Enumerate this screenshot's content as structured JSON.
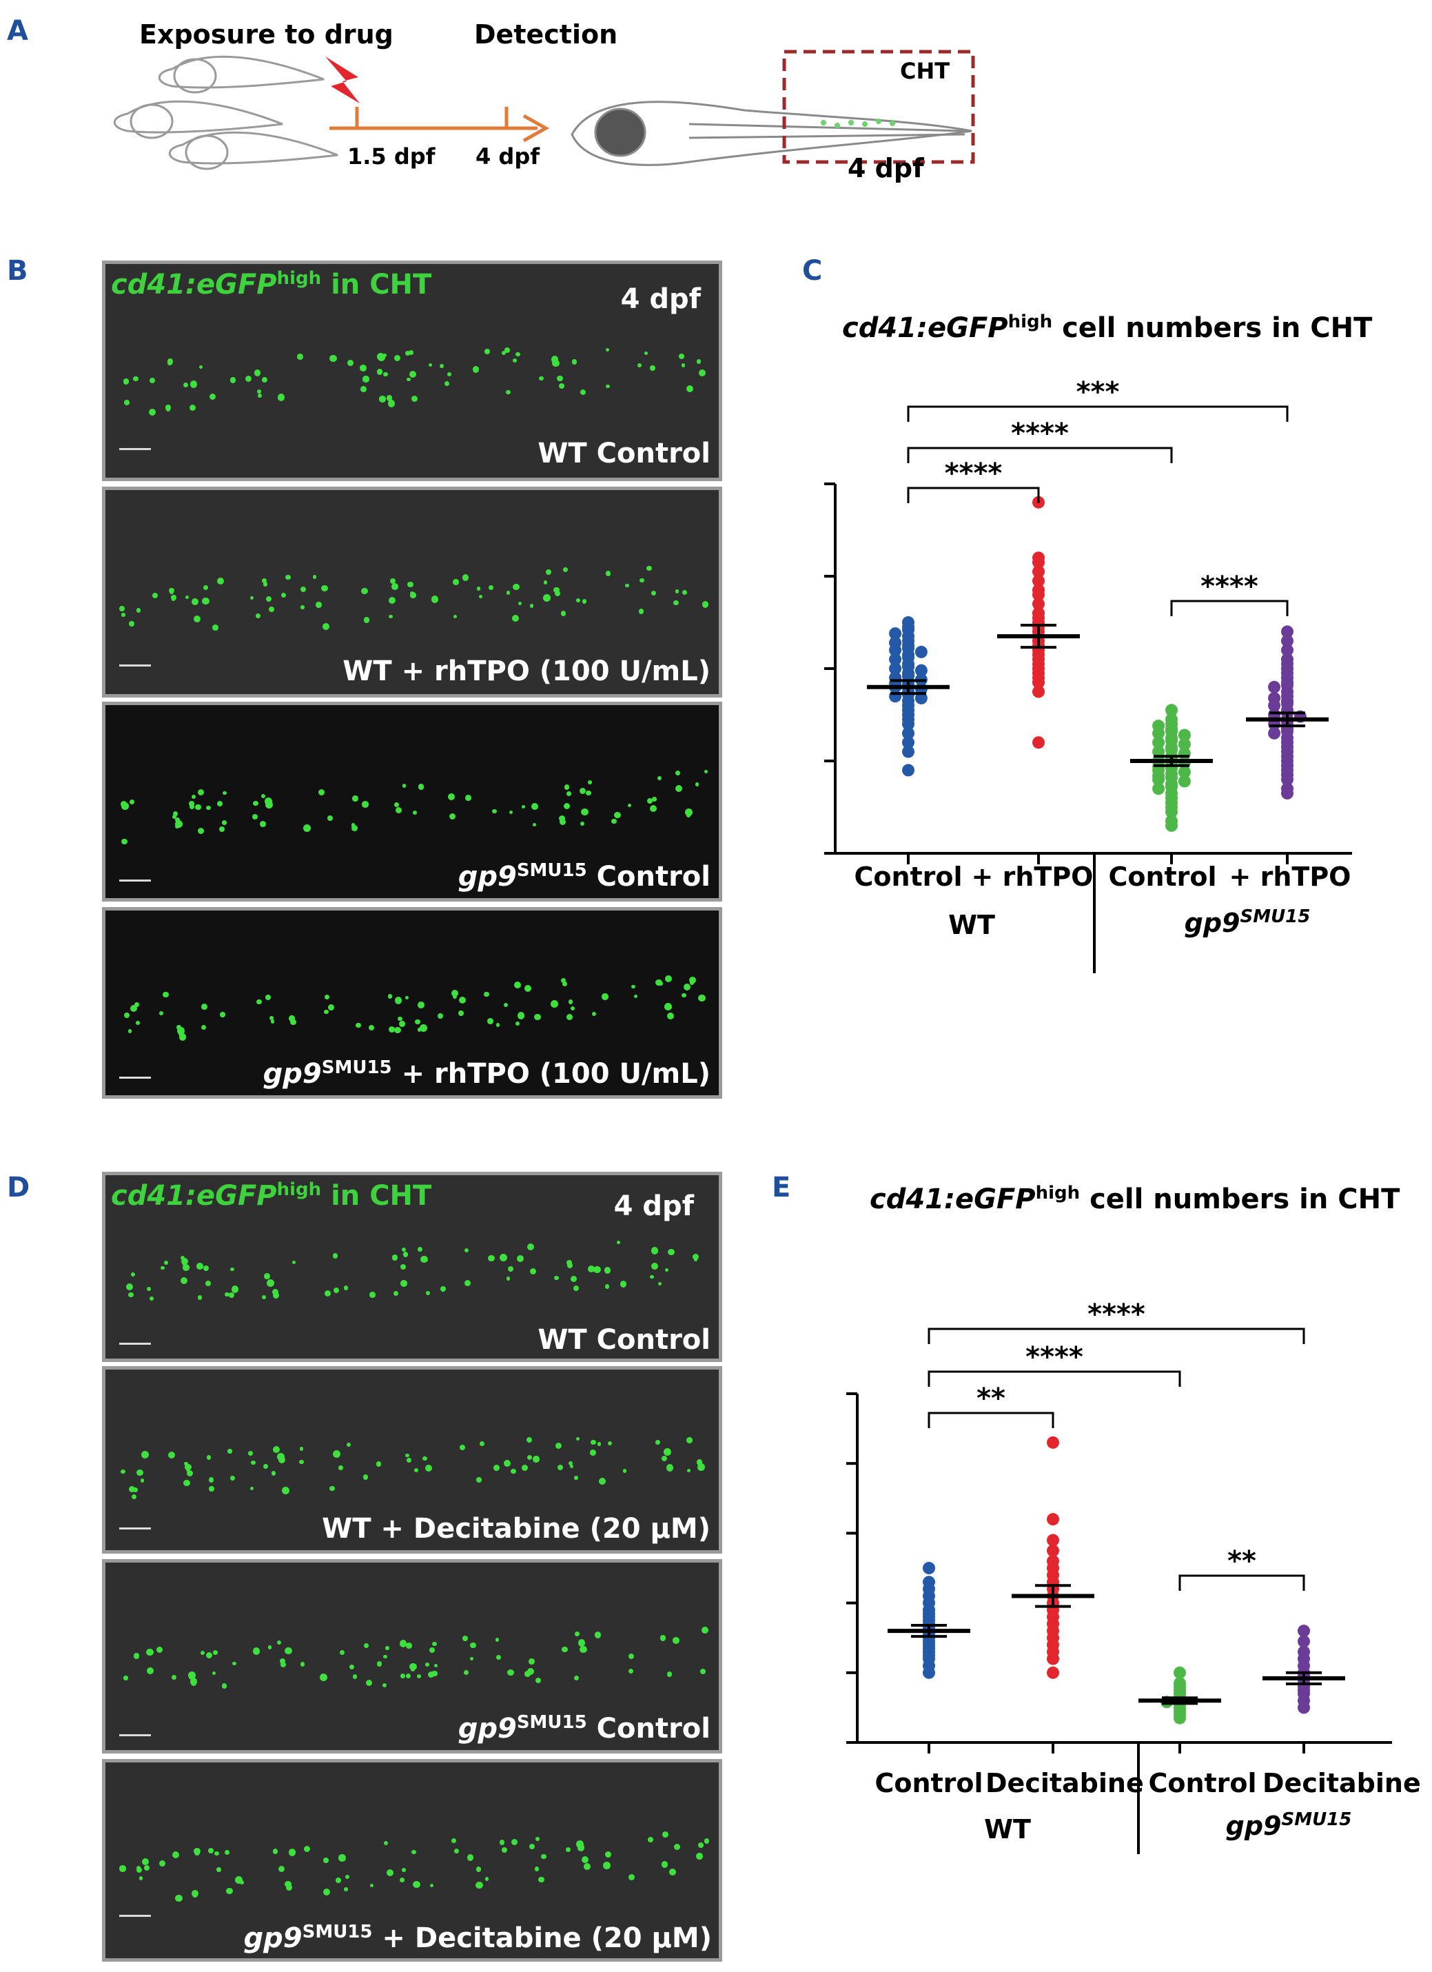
{
  "panel_a": {
    "letter": "A",
    "exposure_label": "Exposure to drug",
    "detection_label": "Detection",
    "tick1_label": "1.5 dpf",
    "tick2_label": "4 dpf",
    "cht_label": "CHT",
    "final_label": "4 dpf"
  },
  "panel_b": {
    "letter": "B",
    "title_gene": "cd41:eGFP",
    "title_sup": "high",
    "title_rest": " in CHT",
    "stage": "4 dpf",
    "images": [
      {
        "label_pre": "",
        "label_sup": "",
        "label_main": "WT Control"
      },
      {
        "label_pre": "",
        "label_sup": "",
        "label_main": "WT + rhTPO (100 U/mL)"
      },
      {
        "label_pre": "gp9",
        "label_sup": "SMU15",
        "label_main": " Control"
      },
      {
        "label_pre": "gp9",
        "label_sup": "SMU15",
        "label_main": " + rhTPO (100 U/mL)"
      }
    ]
  },
  "panel_c": {
    "letter": "C",
    "title_gene": "cd41:eGFP",
    "title_sup": "high",
    "title_rest": " cell numbers in CHT",
    "group_wt": "WT",
    "group_mut_pre": "gp9",
    "group_mut_sup": "SMU15",
    "categories": [
      "Control",
      "+ rhTPO",
      "Control",
      "+ rhTPO"
    ],
    "sig_labels": [
      "****",
      "****",
      "***",
      "****"
    ]
  },
  "panel_d": {
    "letter": "D",
    "title_gene": "cd41:eGFP",
    "title_sup": "high",
    "title_rest": " in CHT",
    "stage": "4 dpf",
    "images": [
      {
        "label_pre": "",
        "label_sup": "",
        "label_main": "WT Control"
      },
      {
        "label_pre": "",
        "label_sup": "",
        "label_main": "WT + Decitabine (20 µM)"
      },
      {
        "label_pre": "gp9",
        "label_sup": "SMU15",
        "label_main": " Control"
      },
      {
        "label_pre": "gp9",
        "label_sup": "SMU15",
        "label_main": " + Decitabine (20 µM)"
      }
    ]
  },
  "panel_e": {
    "letter": "E",
    "title_gene": "cd41:eGFP",
    "title_sup": "high",
    "title_rest": " cell numbers in CHT",
    "group_wt": "WT",
    "group_mut_pre": "gp9",
    "group_mut_sup": "SMU15",
    "categories": [
      "Control",
      "Decitabine",
      "Control",
      "Decitabine"
    ],
    "sig_labels": [
      "**",
      "****",
      "****",
      "**"
    ]
  },
  "chart_data": [
    {
      "type": "scatter",
      "title": "cd41:eGFPhigh cell numbers in CHT",
      "categories": [
        "Control",
        "+ rhTPO",
        "Control",
        "+ rhTPO"
      ],
      "groups": [
        "WT",
        "WT",
        "gp9SMU15",
        "gp9SMU15"
      ],
      "ylim": [
        0,
        4
      ],
      "colors": [
        "#2459a8",
        "#e3262d",
        "#4db748",
        "#6b3c97"
      ],
      "series": [
        {
          "mean": 1.8,
          "sem": 0.07,
          "values": [
            2.5,
            2.45,
            2.42,
            2.38,
            2.35,
            2.3,
            2.28,
            2.25,
            2.22,
            2.2,
            2.18,
            2.15,
            2.12,
            2.1,
            2.05,
            2.02,
            2.0,
            1.98,
            1.95,
            1.92,
            1.9,
            1.88,
            1.86,
            1.84,
            1.82,
            1.8,
            1.78,
            1.75,
            1.72,
            1.7,
            1.68,
            1.65,
            1.6,
            1.55,
            1.5,
            1.45,
            1.4,
            1.3,
            1.2,
            1.1,
            0.9
          ]
        },
        {
          "mean": 2.35,
          "sem": 0.12,
          "values": [
            3.8,
            3.2,
            3.15,
            3.05,
            2.95,
            2.85,
            2.8,
            2.7,
            2.6,
            2.55,
            2.5,
            2.45,
            2.4,
            2.35,
            2.3,
            2.25,
            2.2,
            2.15,
            2.1,
            2.05,
            2.0,
            1.95,
            1.9,
            1.85,
            1.75,
            1.2
          ]
        },
        {
          "mean": 1.0,
          "sem": 0.05,
          "values": [
            1.55,
            1.45,
            1.4,
            1.38,
            1.35,
            1.32,
            1.3,
            1.28,
            1.25,
            1.22,
            1.2,
            1.18,
            1.15,
            1.12,
            1.1,
            1.08,
            1.05,
            1.02,
            1.0,
            0.98,
            0.96,
            0.94,
            0.92,
            0.9,
            0.88,
            0.86,
            0.84,
            0.82,
            0.8,
            0.78,
            0.75,
            0.72,
            0.7,
            0.65,
            0.6,
            0.55,
            0.5,
            0.45,
            0.35,
            0.3
          ]
        },
        {
          "mean": 1.45,
          "sem": 0.07,
          "values": [
            2.4,
            2.3,
            2.2,
            2.1,
            2.05,
            2.0,
            1.95,
            1.9,
            1.85,
            1.82,
            1.8,
            1.75,
            1.7,
            1.68,
            1.65,
            1.62,
            1.6,
            1.55,
            1.52,
            1.5,
            1.48,
            1.45,
            1.42,
            1.4,
            1.35,
            1.32,
            1.3,
            1.25,
            1.2,
            1.15,
            1.1,
            1.05,
            1.0,
            0.95,
            0.9,
            0.85,
            0.8,
            0.7,
            0.65
          ]
        }
      ],
      "comparisons": [
        {
          "from": 0,
          "to": 1,
          "label": "****"
        },
        {
          "from": 0,
          "to": 2,
          "label": "****"
        },
        {
          "from": 0,
          "to": 3,
          "label": "***"
        },
        {
          "from": 2,
          "to": 3,
          "label": "****"
        }
      ]
    },
    {
      "type": "scatter",
      "title": "cd41:eGFPhigh cell numbers in CHT",
      "categories": [
        "Control",
        "Decitabine",
        "Control",
        "Decitabine"
      ],
      "groups": [
        "WT",
        "WT",
        "gp9SMU15",
        "gp9SMU15"
      ],
      "ylim": [
        0,
        5
      ],
      "colors": [
        "#2459a8",
        "#e3262d",
        "#4db748",
        "#6b3c97"
      ],
      "series": [
        {
          "mean": 1.6,
          "sem": 0.08,
          "values": [
            2.5,
            2.3,
            2.2,
            2.1,
            2.0,
            1.9,
            1.85,
            1.8,
            1.75,
            1.7,
            1.65,
            1.6,
            1.55,
            1.5,
            1.45,
            1.4,
            1.35,
            1.3,
            1.25,
            1.2,
            1.1,
            1.0
          ]
        },
        {
          "mean": 2.1,
          "sem": 0.15,
          "values": [
            4.3,
            3.2,
            2.9,
            2.75,
            2.6,
            2.5,
            2.4,
            2.3,
            2.2,
            2.1,
            2.0,
            1.9,
            1.8,
            1.7,
            1.6,
            1.5,
            1.4,
            1.3,
            1.2,
            1.0
          ]
        },
        {
          "mean": 0.6,
          "sem": 0.04,
          "values": [
            1.0,
            0.85,
            0.8,
            0.75,
            0.7,
            0.65,
            0.6,
            0.58,
            0.55,
            0.5,
            0.45,
            0.4,
            0.35
          ]
        },
        {
          "mean": 0.92,
          "sem": 0.08,
          "values": [
            1.6,
            1.45,
            1.3,
            1.2,
            1.1,
            1.0,
            0.95,
            0.9,
            0.85,
            0.8,
            0.75,
            0.7,
            0.6,
            0.5
          ]
        }
      ],
      "comparisons": [
        {
          "from": 0,
          "to": 1,
          "label": "**"
        },
        {
          "from": 0,
          "to": 2,
          "label": "****"
        },
        {
          "from": 0,
          "to": 3,
          "label": "****"
        },
        {
          "from": 2,
          "to": 3,
          "label": "**"
        }
      ]
    }
  ]
}
